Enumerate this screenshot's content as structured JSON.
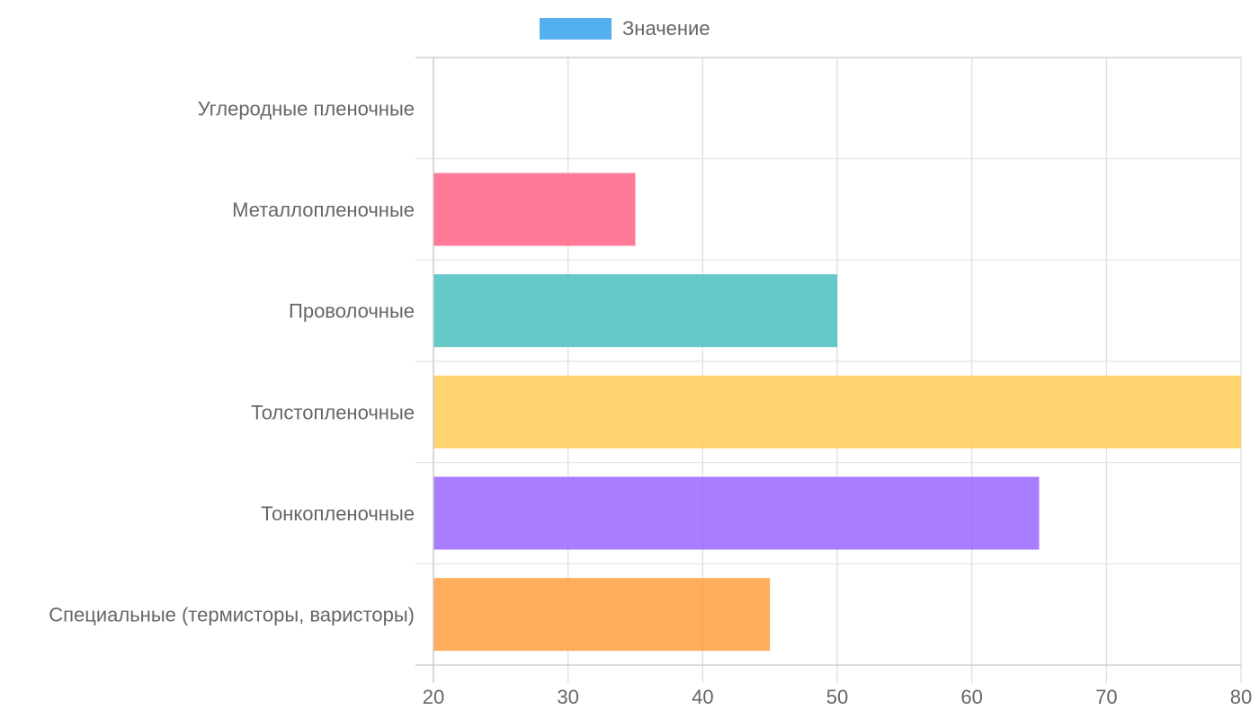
{
  "chart_data": {
    "type": "bar",
    "orientation": "horizontal",
    "categories": [
      "Углеродные пленочные",
      "Металлопленочные",
      "Проволочные",
      "Толстопленочные",
      "Тонкопленочные",
      "Специальные (термисторы, варисторы)"
    ],
    "series": [
      {
        "name": "Значение",
        "values": [
          20,
          35,
          50,
          80,
          65,
          45
        ]
      }
    ],
    "bar_colors": [
      "#ff6384",
      "#ff6384",
      "#4bc0c0",
      "#ffcd56",
      "#9966ff",
      "#ff9f40"
    ],
    "legend_color": "#36a2eb",
    "xlim": [
      20,
      80
    ],
    "xticks": [
      20,
      30,
      40,
      50,
      60,
      70,
      80
    ],
    "grid": true,
    "legend_position": "top"
  }
}
